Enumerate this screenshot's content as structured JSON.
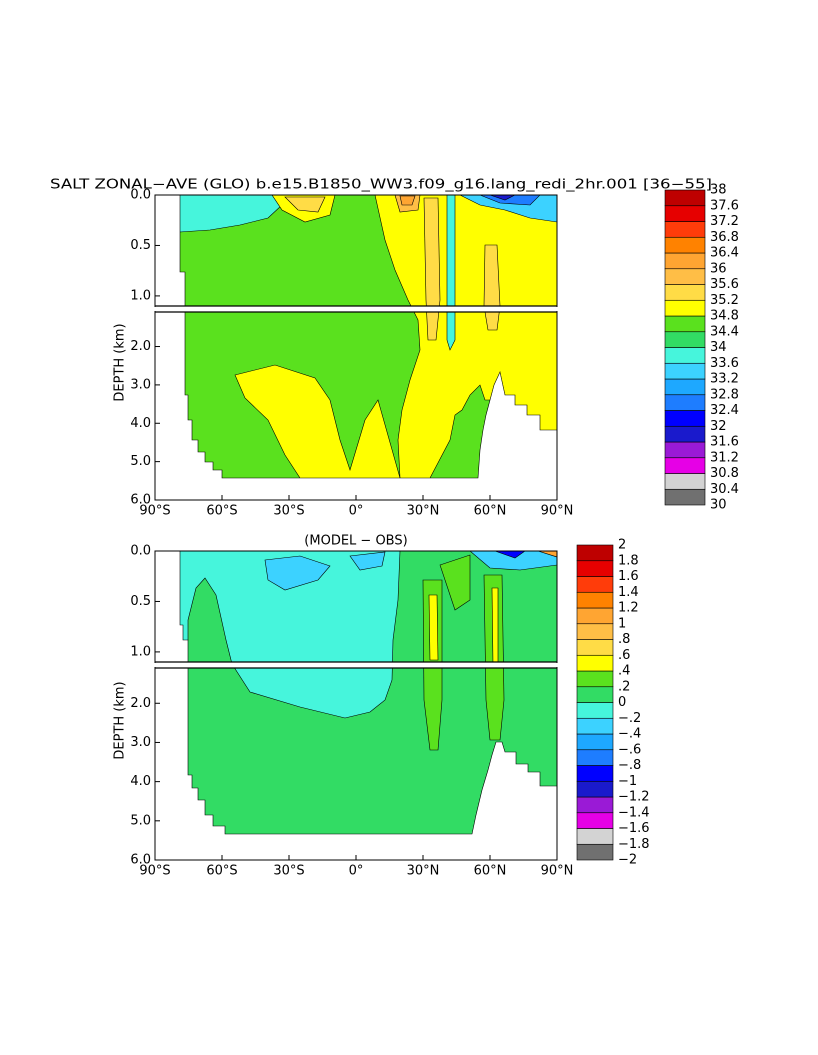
{
  "chart_data": [
    {
      "type": "contour",
      "title": "SALT ZONAL−AVE (GLO) b.e15.B1850_WW3.f09_g16.lang_redi_2hr.001 [36−55]",
      "ylabel": "DEPTH (km)",
      "xlim": [
        -90,
        90
      ],
      "xticks": [
        {
          "value": -90,
          "label": "90°S"
        },
        {
          "value": -60,
          "label": "60°S"
        },
        {
          "value": -30,
          "label": "30°S"
        },
        {
          "value": 0,
          "label": "0°"
        },
        {
          "value": 30,
          "label": "30°N"
        },
        {
          "value": 60,
          "label": "60°N"
        },
        {
          "value": 90,
          "label": "90°N"
        }
      ],
      "ylim": [
        0,
        6
      ],
      "yticks": [
        {
          "value": 0,
          "label": "0.0"
        },
        0.5,
        {
          "value": 1,
          "label": "1.0"
        },
        {
          "value": 2,
          "label": "2.0"
        },
        {
          "value": 3,
          "label": "3.0"
        },
        {
          "value": 4,
          "label": "4.0"
        },
        {
          "value": 5,
          "label": "5.0"
        },
        {
          "value": 6,
          "label": "6.0"
        }
      ],
      "colorbar": {
        "levels": [
          30,
          30.4,
          30.8,
          31.2,
          31.6,
          32,
          32.4,
          32.8,
          33.2,
          33.6,
          34,
          34.4,
          34.8,
          35.2,
          35.6,
          36,
          36.4,
          36.8,
          37.2,
          37.6,
          38
        ],
        "colors": [
          "#707070",
          "#d3d3d3",
          "#e600e6",
          "#9a1ad6",
          "#1a1acc",
          "#0000ff",
          "#1e7dff",
          "#1ea8ff",
          "#3cd2ff",
          "#46f5dc",
          "#32dc64",
          "#5ae11e",
          "#ffff00",
          "#ffdc46",
          "#ffbe46",
          "#ffa532",
          "#ff8200",
          "#ff3c0a",
          "#e60000",
          "#be0000"
        ]
      }
    },
    {
      "type": "contour",
      "title": "(MODEL − OBS)",
      "ylabel": "DEPTH (km)",
      "xlim": [
        -90,
        90
      ],
      "xticks": [
        {
          "value": -90,
          "label": "90°S"
        },
        {
          "value": -60,
          "label": "60°S"
        },
        {
          "value": -30,
          "label": "30°S"
        },
        {
          "value": 0,
          "label": "0°"
        },
        {
          "value": 30,
          "label": "30°N"
        },
        {
          "value": 60,
          "label": "60°N"
        },
        {
          "value": 90,
          "label": "90°N"
        }
      ],
      "ylim": [
        0,
        6
      ],
      "yticks": [
        {
          "value": 0,
          "label": "0.0"
        },
        0.5,
        {
          "value": 1,
          "label": "1.0"
        },
        {
          "value": 2,
          "label": "2.0"
        },
        {
          "value": 3,
          "label": "3.0"
        },
        {
          "value": 4,
          "label": "4.0"
        },
        {
          "value": 5,
          "label": "5.0"
        },
        {
          "value": 6,
          "label": "6.0"
        }
      ],
      "colorbar": {
        "levels": [
          {
            "value": -2,
            "label": "−2"
          },
          {
            "value": -1.8,
            "label": "−1.8"
          },
          {
            "value": -1.6,
            "label": "−1.6"
          },
          {
            "value": -1.4,
            "label": "−1.4"
          },
          {
            "value": -1.2,
            "label": "−1.2"
          },
          {
            "value": -1,
            "label": "−1"
          },
          {
            "value": -0.8,
            "label": "−.8"
          },
          {
            "value": -0.6,
            "label": "−.6"
          },
          {
            "value": -0.4,
            "label": "−.4"
          },
          {
            "value": -0.2,
            "label": "−.2"
          },
          0,
          {
            "value": 0.2,
            "label": ".2"
          },
          {
            "value": 0.4,
            "label": ".4"
          },
          {
            "value": 0.6,
            "label": ".6"
          },
          {
            "value": 0.8,
            "label": ".8"
          },
          1,
          1.2,
          1.4,
          1.6,
          1.8,
          2
        ],
        "colors": [
          "#707070",
          "#d3d3d3",
          "#e600e6",
          "#9a1ad6",
          "#1a1acc",
          "#0000ff",
          "#1e7dff",
          "#1ea8ff",
          "#3cd2ff",
          "#46f5dc",
          "#32dc64",
          "#5ae11e",
          "#ffff00",
          "#ffdc46",
          "#ffbe46",
          "#ffa532",
          "#ff8200",
          "#ff3c0a",
          "#e60000",
          "#be0000"
        ]
      }
    }
  ]
}
